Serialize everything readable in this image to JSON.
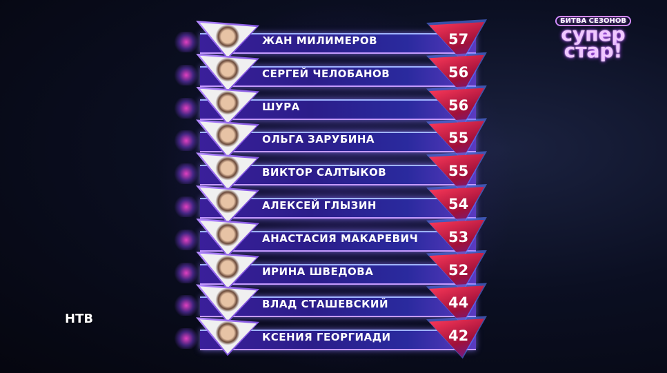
{
  "show_logo": {
    "subtitle": "БИТВА СЕЗОНОВ",
    "title_line1": "супер",
    "title_line2": "стар!"
  },
  "channel_logo": "НТВ",
  "colors": {
    "bar": "#2b1d8a",
    "score_badge": "#d0203f",
    "accent": "#c59bff"
  },
  "leaderboard": [
    {
      "name": "ЖАН МИЛИМЕРОВ",
      "score": "57"
    },
    {
      "name": "СЕРГЕЙ ЧЕЛОБАНОВ",
      "score": "56"
    },
    {
      "name": "ШУРА",
      "score": "56"
    },
    {
      "name": "ОЛЬГА ЗАРУБИНА",
      "score": "55"
    },
    {
      "name": "ВИКТОР САЛТЫКОВ",
      "score": "55"
    },
    {
      "name": "АЛЕКСЕЙ ГЛЫЗИН",
      "score": "54"
    },
    {
      "name": "АНАСТАСИЯ МАКАРЕВИЧ",
      "score": "53"
    },
    {
      "name": "ИРИНА ШВЕДОВА",
      "score": "52"
    },
    {
      "name": "ВЛАД СТАШЕВСКИЙ",
      "score": "44"
    },
    {
      "name": "КСЕНИЯ ГЕОРГИАДИ",
      "score": "42"
    }
  ]
}
